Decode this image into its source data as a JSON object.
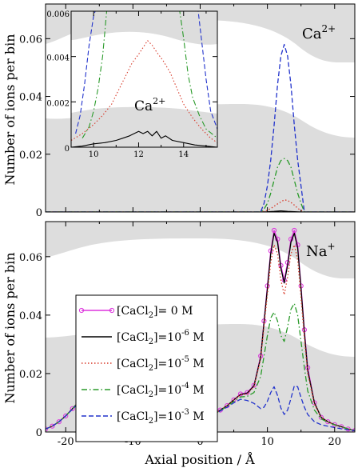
{
  "figure": {
    "shared_ylabel": "Number of ions per bin",
    "xlabel": "Axial position / Å"
  },
  "chart_data": [
    {
      "type": "line",
      "panel": "top",
      "ion_label": {
        "base": "Ca",
        "sup": "2+"
      },
      "ylabel": "Number of ions per bin",
      "xlim": [
        -23,
        23
      ],
      "ylim": [
        0,
        0.072
      ],
      "ytick_labels": [
        "0",
        "0.02",
        "0.04",
        "0.06"
      ],
      "yticks": [
        0,
        0.02,
        0.04,
        0.06
      ],
      "xticks": [
        -20,
        -10,
        0,
        10,
        20
      ],
      "grid": false,
      "series": [
        {
          "id": "s1",
          "color": "#000000",
          "dash": "solid",
          "x": [
            -23,
            9,
            10,
            11,
            12,
            13,
            14,
            15,
            23
          ],
          "y": [
            0,
            0,
            5e-05,
            0.0002,
            0.0004,
            0.0002,
            0.0001,
            0,
            0
          ]
        },
        {
          "id": "s2",
          "color": "#d83a2a",
          "dash": "dot",
          "x": [
            -23,
            9,
            9.5,
            10,
            10.5,
            11,
            11.5,
            12,
            12.5,
            13,
            13.5,
            14,
            14.5,
            15,
            15.5,
            23
          ],
          "y": [
            0,
            0,
            0.0002,
            0.0006,
            0.0012,
            0.002,
            0.0028,
            0.0035,
            0.0042,
            0.004,
            0.0033,
            0.0024,
            0.0013,
            0.0005,
            0,
            0
          ]
        },
        {
          "id": "s3",
          "color": "#2a9a2a",
          "dash": "dashdot",
          "x": [
            -23,
            9,
            9.5,
            10,
            10.5,
            11,
            11.5,
            12,
            12.5,
            13,
            13.5,
            14,
            14.5,
            15,
            15.5,
            23
          ],
          "y": [
            0,
            0,
            0.001,
            0.003,
            0.0065,
            0.011,
            0.0155,
            0.0178,
            0.0185,
            0.0178,
            0.0155,
            0.011,
            0.0065,
            0.003,
            0,
            0
          ]
        },
        {
          "id": "s4",
          "color": "#2233cc",
          "dash": "dash",
          "x": [
            -23,
            9,
            9.5,
            10,
            10.5,
            11,
            11.5,
            12,
            12.5,
            13,
            13.5,
            14,
            14.5,
            15,
            15.5,
            23
          ],
          "y": [
            0,
            0,
            0.003,
            0.009,
            0.018,
            0.03,
            0.044,
            0.054,
            0.058,
            0.054,
            0.044,
            0.03,
            0.018,
            0.009,
            0,
            0
          ]
        }
      ]
    },
    {
      "type": "line",
      "panel": "inset",
      "ion_label": {
        "base": "Ca",
        "sup": "2+"
      },
      "xlim": [
        9,
        15.5
      ],
      "ylim": [
        0,
        0.006
      ],
      "ytick_labels": [
        "0",
        "0.002",
        "0.004",
        "0.006"
      ],
      "yticks": [
        0,
        0.002,
        0.004,
        0.006
      ],
      "xtick_labels": [
        "10",
        "12",
        "14"
      ],
      "xticks": [
        10,
        12,
        14
      ],
      "grid": false,
      "series": [
        {
          "id": "s1",
          "color": "#000000",
          "dash": "solid",
          "x": [
            9,
            9.5,
            10,
            10.5,
            11,
            11.3,
            11.6,
            11.8,
            12,
            12.2,
            12.4,
            12.6,
            12.8,
            13,
            13.2,
            13.5,
            14,
            14.5,
            15,
            15.5
          ],
          "y": [
            0,
            5e-05,
            0.00015,
            0.0002,
            0.0003,
            0.0004,
            0.0005,
            0.0006,
            0.0007,
            0.0006,
            0.0007,
            0.0005,
            0.0007,
            0.0004,
            0.0005,
            0.0003,
            0.0002,
            0.0001,
            5e-05,
            0
          ]
        },
        {
          "id": "s2",
          "color": "#d83a2a",
          "dash": "dot",
          "x": [
            9,
            9.5,
            10,
            10.4,
            10.8,
            11.1,
            11.4,
            11.7,
            12,
            12.2,
            12.4,
            12.6,
            12.8,
            13.1,
            13.4,
            13.7,
            14,
            14.4,
            14.8,
            15.2,
            15.5
          ],
          "y": [
            0.0003,
            0.0006,
            0.001,
            0.0014,
            0.0019,
            0.0025,
            0.0031,
            0.0037,
            0.0041,
            0.0044,
            0.0047,
            0.0045,
            0.0042,
            0.0038,
            0.0033,
            0.0026,
            0.0019,
            0.0013,
            0.0008,
            0.0004,
            0.0002
          ]
        },
        {
          "id": "s3",
          "color": "#2a9a2a",
          "dash": "dashdot",
          "x": [
            9.5,
            9.8,
            10,
            10.2,
            10.4,
            10.6,
            13.8,
            14,
            14.2,
            14.4,
            14.7,
            15,
            15.5
          ],
          "y": [
            0.0004,
            0.0009,
            0.0016,
            0.0026,
            0.004,
            0.0062,
            0.0062,
            0.0048,
            0.0032,
            0.0022,
            0.0014,
            0.0008,
            0.0004
          ]
        },
        {
          "id": "s4",
          "color": "#2233cc",
          "dash": "dash",
          "x": [
            9.2,
            9.4,
            9.6,
            9.8,
            10,
            10.2,
            14.6,
            14.8,
            15,
            15.2,
            15.5
          ],
          "y": [
            0.0006,
            0.0014,
            0.0028,
            0.0045,
            0.0058,
            0.0064,
            0.0064,
            0.0047,
            0.003,
            0.0016,
            0.0008
          ]
        }
      ]
    },
    {
      "type": "line",
      "panel": "bottom",
      "ion_label": {
        "base": "Na",
        "sup": "+"
      },
      "ylabel": "Number of ions per bin",
      "xlabel": "Axial position / Å",
      "xlim": [
        -23,
        23
      ],
      "ylim": [
        0,
        0.072
      ],
      "ytick_labels": [
        "0",
        "0.02",
        "0.04",
        "0.06"
      ],
      "yticks": [
        0,
        0.02,
        0.04,
        0.06
      ],
      "xtick_labels": [
        "-20",
        "-10",
        "0",
        "10",
        "20"
      ],
      "xticks": [
        -20,
        -10,
        0,
        10,
        20
      ],
      "grid": false,
      "legend_position": "upper-left",
      "legend": [
        {
          "series_id": "s0",
          "base": "[CaCl",
          "sub": "2",
          "tail": "]= 0 M",
          "sup": ""
        },
        {
          "series_id": "s1",
          "base": "[CaCl",
          "sub": "2",
          "tail": "]=10",
          "sup": "-6",
          "end": " M"
        },
        {
          "series_id": "s2",
          "base": "[CaCl",
          "sub": "2",
          "tail": "]=10",
          "sup": "-5",
          "end": " M"
        },
        {
          "series_id": "s3",
          "base": "[CaCl",
          "sub": "2",
          "tail": "]=10",
          "sup": "-4",
          "end": " M"
        },
        {
          "series_id": "s4",
          "base": "[CaCl",
          "sub": "2",
          "tail": "]=10",
          "sup": "-3",
          "end": " M"
        }
      ],
      "series": [
        {
          "id": "s0",
          "color": "#dd33dd",
          "dash": "solid",
          "markers": true,
          "x": [
            -23,
            -22,
            -21,
            -20,
            -19,
            -18,
            -17.5,
            -17,
            -16,
            -15,
            -14,
            -13,
            -12,
            -11,
            -10,
            -8,
            -6,
            -4,
            -2,
            0,
            1,
            2,
            3,
            4,
            5,
            6,
            7,
            8,
            9,
            9.5,
            10,
            10.5,
            11,
            11.5,
            12,
            12.5,
            13,
            13.5,
            14,
            14.5,
            15,
            15.5,
            16,
            17,
            18,
            19,
            20,
            21,
            22,
            23
          ],
          "y": [
            0.001,
            0.002,
            0.0035,
            0.0055,
            0.008,
            0.0105,
            0.0115,
            0.011,
            0.009,
            0.0065,
            0.0045,
            0.003,
            0.0022,
            0.0018,
            0.0015,
            0.0016,
            0.002,
            0.0025,
            0.003,
            0.004,
            0.005,
            0.006,
            0.0075,
            0.009,
            0.011,
            0.013,
            0.0135,
            0.016,
            0.026,
            0.038,
            0.05,
            0.062,
            0.069,
            0.066,
            0.057,
            0.052,
            0.058,
            0.066,
            0.069,
            0.064,
            0.05,
            0.035,
            0.022,
            0.01,
            0.005,
            0.0035,
            0.0025,
            0.0018,
            0.001,
            0.0005
          ]
        },
        {
          "id": "s1",
          "color": "#000000",
          "dash": "solid",
          "x": [
            -23,
            -22,
            -21,
            -20,
            -19,
            -18,
            -17.5,
            -17,
            -16,
            -15,
            -14,
            -13,
            -12,
            -11,
            -10,
            -8,
            -6,
            -4,
            -2,
            0,
            1,
            2,
            3,
            4,
            5,
            6,
            7,
            8,
            9,
            9.5,
            10,
            10.5,
            11,
            11.5,
            12,
            12.5,
            13,
            13.5,
            14,
            14.5,
            15,
            15.5,
            16,
            17,
            18,
            19,
            20,
            21,
            22,
            23
          ],
          "y": [
            0.001,
            0.002,
            0.0035,
            0.0055,
            0.008,
            0.0105,
            0.0113,
            0.0108,
            0.009,
            0.0065,
            0.0045,
            0.003,
            0.0022,
            0.0018,
            0.0015,
            0.0016,
            0.002,
            0.0025,
            0.003,
            0.004,
            0.005,
            0.006,
            0.0075,
            0.009,
            0.011,
            0.0128,
            0.0133,
            0.0158,
            0.0255,
            0.0375,
            0.049,
            0.061,
            0.068,
            0.065,
            0.056,
            0.051,
            0.057,
            0.065,
            0.068,
            0.063,
            0.049,
            0.034,
            0.021,
            0.01,
            0.005,
            0.0035,
            0.0025,
            0.0018,
            0.001,
            0.0005
          ]
        },
        {
          "id": "s2",
          "color": "#d83a2a",
          "dash": "dot",
          "x": [
            -23,
            -22,
            -21,
            -20,
            -19,
            -18,
            -17.5,
            -17,
            -16,
            -15,
            -14,
            -13,
            -12,
            -11,
            -10,
            -8,
            -6,
            -4,
            -2,
            0,
            1,
            2,
            3,
            4,
            5,
            6,
            7,
            8,
            9,
            9.5,
            10,
            10.5,
            11,
            11.5,
            12,
            12.5,
            13,
            13.5,
            14,
            14.5,
            15,
            15.5,
            16,
            17,
            18,
            19,
            20,
            21,
            22,
            23
          ],
          "y": [
            0.001,
            0.002,
            0.0035,
            0.0055,
            0.008,
            0.0105,
            0.0112,
            0.0107,
            0.009,
            0.0065,
            0.0045,
            0.003,
            0.0022,
            0.0018,
            0.0015,
            0.0016,
            0.002,
            0.0025,
            0.003,
            0.004,
            0.005,
            0.006,
            0.0075,
            0.009,
            0.011,
            0.0127,
            0.013,
            0.0155,
            0.025,
            0.036,
            0.047,
            0.058,
            0.064,
            0.061,
            0.052,
            0.047,
            0.053,
            0.061,
            0.064,
            0.059,
            0.046,
            0.032,
            0.02,
            0.0095,
            0.005,
            0.0035,
            0.0025,
            0.0018,
            0.001,
            0.0005
          ]
        },
        {
          "id": "s3",
          "color": "#2a9a2a",
          "dash": "dashdot",
          "x": [
            -23,
            -22,
            -21,
            -20,
            -19,
            -18,
            -17.5,
            -17,
            -16,
            -15,
            -14,
            -13,
            -12,
            -11,
            -10,
            -8,
            -6,
            -4,
            -2,
            0,
            1,
            2,
            3,
            4,
            5,
            6,
            7,
            8,
            9,
            9.5,
            10,
            10.5,
            11,
            11.5,
            12,
            12.5,
            13,
            13.5,
            14,
            14.5,
            15,
            15.5,
            16,
            17,
            18,
            19,
            20,
            21,
            22,
            23
          ],
          "y": [
            0.001,
            0.002,
            0.0035,
            0.0055,
            0.008,
            0.0103,
            0.011,
            0.0105,
            0.0088,
            0.0064,
            0.0044,
            0.003,
            0.0022,
            0.0018,
            0.0015,
            0.0016,
            0.002,
            0.0025,
            0.003,
            0.004,
            0.005,
            0.006,
            0.0073,
            0.0088,
            0.0105,
            0.012,
            0.0122,
            0.0135,
            0.019,
            0.026,
            0.033,
            0.039,
            0.041,
            0.038,
            0.033,
            0.031,
            0.036,
            0.042,
            0.044,
            0.04,
            0.031,
            0.022,
            0.014,
            0.0075,
            0.0045,
            0.0033,
            0.0024,
            0.0017,
            0.001,
            0.0005
          ]
        },
        {
          "id": "s4",
          "color": "#2233cc",
          "dash": "dash",
          "x": [
            -23,
            -22,
            -21,
            -20,
            -19,
            -18,
            -17.5,
            -17,
            -16,
            -15,
            -14,
            -13,
            -12,
            -11,
            -10,
            -8,
            -6,
            -4,
            -2,
            0,
            1,
            2,
            3,
            4,
            5,
            6,
            7,
            8,
            9,
            9.5,
            10,
            10.5,
            11,
            11.5,
            12,
            12.5,
            13,
            13.5,
            14,
            14.5,
            15,
            15.5,
            16,
            17,
            18,
            19,
            20,
            21,
            22,
            23
          ],
          "y": [
            0.001,
            0.002,
            0.0035,
            0.0055,
            0.0078,
            0.01,
            0.0108,
            0.0103,
            0.0086,
            0.0063,
            0.0044,
            0.003,
            0.0022,
            0.0018,
            0.0015,
            0.0016,
            0.002,
            0.0025,
            0.003,
            0.004,
            0.005,
            0.006,
            0.0072,
            0.0085,
            0.01,
            0.0112,
            0.0108,
            0.0098,
            0.008,
            0.0085,
            0.0105,
            0.0135,
            0.0155,
            0.0125,
            0.0082,
            0.006,
            0.0075,
            0.0115,
            0.0158,
            0.0155,
            0.0118,
            0.0085,
            0.006,
            0.0035,
            0.0025,
            0.002,
            0.0015,
            0.0011,
            0.0008,
            0.0004
          ]
        }
      ]
    }
  ]
}
